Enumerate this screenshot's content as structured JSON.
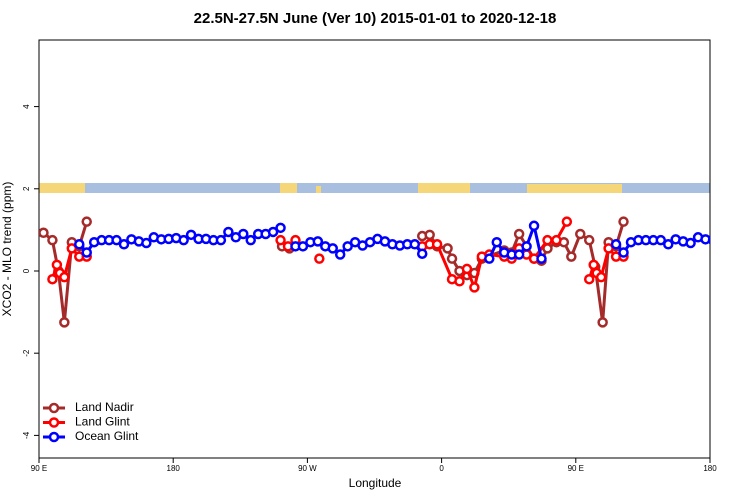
{
  "chart_data": {
    "type": "line",
    "title": "22.5N-27.5N June (Ver 10)   2015-01-01 to 2020-12-18",
    "x_label": "Longitude",
    "y_label": "XCO2 - MLO trend (ppm)",
    "xlim": [
      90,
      540
    ],
    "ylim": [
      -4.55,
      5.62
    ],
    "xticks": [
      {
        "value": 90,
        "label": "90 E"
      },
      180,
      {
        "value": 270,
        "label": "90 W"
      },
      {
        "value": 360,
        "label": "0"
      },
      {
        "value": 450,
        "label": "90 E"
      },
      {
        "value": 540,
        "label": "180"
      }
    ],
    "yticks": [
      -4,
      -2,
      0,
      2,
      4
    ],
    "legend": "bottom-left",
    "series": [
      {
        "name": "Land Nadir",
        "color": "#a52a2a",
        "x": [
          93,
          99,
          103,
          107,
          112,
          117,
          122,
          null,
          253,
          258,
          null,
          347,
          352,
          357,
          364,
          367,
          372,
          377,
          382,
          387,
          402,
          407,
          412,
          422,
          427,
          431,
          437,
          442,
          447,
          453,
          459,
          463,
          468,
          472,
          477,
          482
        ],
        "values": [
          0.93,
          0.75,
          0.0,
          -1.25,
          0.7,
          0.6,
          1.2,
          null,
          0.6,
          0.55,
          null,
          0.85,
          0.88,
          0.6,
          0.55,
          0.3,
          0.0,
          -0.1,
          -0.05,
          0.3,
          0.5,
          0.45,
          0.9,
          0.3,
          0.25,
          0.55,
          0.7,
          0.7,
          0.35,
          0.9,
          0.75,
          0.1,
          -1.25,
          0.7,
          0.6,
          1.2
        ]
      },
      {
        "name": "Land Glint",
        "color": "#ff0000",
        "x": [
          99,
          102,
          104,
          107,
          112,
          117,
          122,
          null,
          252,
          257,
          262,
          null,
          278,
          null,
          347,
          352,
          357,
          367,
          372,
          377,
          382,
          387,
          392,
          402,
          407,
          412,
          417,
          422,
          431,
          437,
          444,
          null,
          459,
          462,
          464,
          467,
          472,
          477,
          482
        ],
        "values": [
          -0.2,
          0.15,
          -0.05,
          -0.15,
          0.55,
          0.35,
          0.35,
          null,
          0.75,
          0.6,
          0.75,
          null,
          0.3,
          null,
          0.6,
          0.65,
          0.65,
          -0.2,
          -0.25,
          0.05,
          -0.4,
          0.35,
          0.4,
          0.35,
          0.3,
          0.55,
          0.4,
          0.3,
          0.75,
          0.75,
          1.2,
          null,
          -0.2,
          0.15,
          -0.05,
          -0.15,
          0.55,
          0.35,
          0.35
        ]
      },
      {
        "name": "Ocean Glint",
        "color": "#0000ff",
        "x": [
          117,
          122,
          127,
          132,
          137,
          142,
          147,
          152,
          157,
          162,
          167,
          172,
          177,
          182,
          187,
          192,
          197,
          202,
          207,
          212,
          217,
          222,
          227,
          232,
          237,
          242,
          247,
          252,
          null,
          262,
          267,
          272,
          277,
          282,
          287,
          292,
          297,
          302,
          307,
          312,
          317,
          322,
          327,
          332,
          337,
          342,
          347,
          null,
          392,
          397,
          402,
          407,
          412,
          417,
          422,
          427,
          null,
          477,
          482,
          487,
          492,
          497,
          502,
          507,
          512,
          517,
          522,
          527,
          532,
          537,
          542
        ],
        "values": [
          0.65,
          0.45,
          0.7,
          0.75,
          0.75,
          0.75,
          0.65,
          0.77,
          0.72,
          0.68,
          0.82,
          0.77,
          0.78,
          0.8,
          0.75,
          0.88,
          0.78,
          0.78,
          0.75,
          0.75,
          0.95,
          0.82,
          0.9,
          0.75,
          0.9,
          0.9,
          0.95,
          1.05,
          null,
          0.6,
          0.6,
          0.7,
          0.72,
          0.6,
          0.55,
          0.4,
          0.6,
          0.7,
          0.62,
          0.7,
          0.78,
          0.72,
          0.65,
          0.62,
          0.65,
          0.65,
          0.42,
          null,
          0.3,
          0.7,
          0.45,
          0.4,
          0.4,
          0.6,
          1.1,
          0.3,
          null,
          0.65,
          0.45,
          0.7,
          0.75,
          0.75,
          0.75,
          0.75,
          0.65,
          0.77,
          0.72,
          0.68,
          0.82,
          0.77,
          0.75
        ]
      }
    ]
  }
}
